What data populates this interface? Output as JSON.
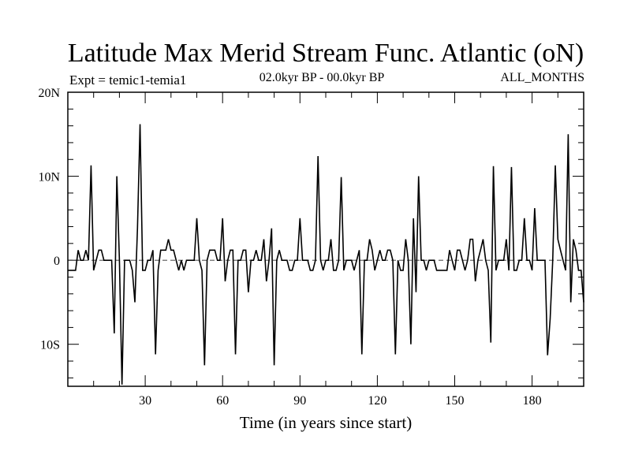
{
  "chart_data": {
    "type": "line",
    "title": "Latitude Max Merid Stream Func. Atlantic (oN)",
    "left_label": "Expt = temic1-temia1",
    "center_label": "02.0kyr BP - 00.0kyr BP",
    "right_label": "ALL_MONTHS",
    "xlabel": "Time (in years since start)",
    "ylabel": "",
    "xlim": [
      0,
      200
    ],
    "ylim": [
      -15,
      20
    ],
    "x_ticks": [
      {
        "value": 30,
        "label": "30"
      },
      {
        "value": 60,
        "label": "60"
      },
      {
        "value": 90,
        "label": "90"
      },
      {
        "value": 120,
        "label": "120"
      },
      {
        "value": 150,
        "label": "150"
      },
      {
        "value": 180,
        "label": "180"
      }
    ],
    "y_ticks": [
      {
        "value": 20,
        "label": "20N"
      },
      {
        "value": 10,
        "label": "10N"
      },
      {
        "value": 0,
        "label": "0"
      },
      {
        "value": -10,
        "label": "10S"
      }
    ],
    "zero_line": true,
    "grid": false,
    "series": [
      {
        "color": "#000000",
        "x": [
          0,
          3,
          4,
          5,
          6,
          7,
          8,
          9,
          10,
          11,
          12,
          13,
          14,
          15,
          16,
          17,
          18,
          19,
          20,
          21,
          22,
          23,
          24,
          25,
          26,
          27,
          28,
          29,
          30,
          31,
          32,
          33,
          34,
          35,
          36,
          37,
          38,
          39,
          40,
          41,
          42,
          43,
          44,
          45,
          46,
          47,
          48,
          49,
          50,
          51,
          52,
          53,
          54,
          55,
          56,
          57,
          58,
          59,
          60,
          61,
          62,
          63,
          64,
          65,
          66,
          67,
          68,
          69,
          70,
          71,
          72,
          73,
          74,
          75,
          76,
          77,
          78,
          79,
          80,
          81,
          82,
          83,
          84,
          85,
          86,
          87,
          88,
          89,
          90,
          91,
          92,
          93,
          94,
          95,
          96,
          97,
          98,
          99,
          100,
          101,
          102,
          103,
          104,
          105,
          106,
          107,
          108,
          109,
          110,
          111,
          112,
          113,
          114,
          115,
          116,
          117,
          118,
          119,
          120,
          121,
          122,
          123,
          124,
          125,
          126,
          127,
          128,
          129,
          130,
          131,
          132,
          133,
          134,
          135,
          136,
          137,
          138,
          139,
          140,
          141,
          142,
          143,
          144,
          145,
          146,
          147,
          148,
          149,
          150,
          151,
          152,
          153,
          154,
          155,
          156,
          157,
          158,
          159,
          160,
          161,
          162,
          163,
          164,
          165,
          166,
          167,
          168,
          169,
          170,
          171,
          172,
          173,
          174,
          175,
          176,
          177,
          178,
          179,
          180,
          181,
          182,
          183,
          184,
          185,
          186,
          187,
          188,
          189,
          190,
          191,
          192,
          193,
          194,
          195,
          196,
          197,
          198,
          199,
          200
        ],
        "y": [
          -1.2,
          -1.2,
          1.2,
          0,
          0,
          1.2,
          0,
          11.3,
          -1.2,
          0,
          1.2,
          1.2,
          0,
          0,
          0,
          0,
          -8.7,
          10,
          0,
          -14.8,
          0,
          0,
          0,
          -1.2,
          -5,
          3.8,
          16.2,
          -1.2,
          -1.2,
          0,
          0,
          1.2,
          -11.2,
          -1.2,
          1.2,
          1.2,
          1.2,
          2.5,
          1.2,
          1.2,
          0,
          -1.2,
          0,
          -1.2,
          0,
          0,
          0,
          0,
          5,
          0,
          -1.2,
          -12.5,
          0,
          1.2,
          1.2,
          1.2,
          0,
          0,
          5,
          -2.5,
          0,
          1.2,
          1.2,
          -11.2,
          0,
          0,
          1.2,
          1.2,
          -3.8,
          0,
          0,
          1.2,
          0,
          0,
          2.5,
          -2.5,
          0,
          3.8,
          -12.5,
          0,
          1.2,
          0,
          0,
          0,
          -1.2,
          -1.2,
          0,
          0,
          5,
          0,
          0,
          0,
          -1.2,
          -1.2,
          0,
          12.4,
          0,
          -1.2,
          0,
          0,
          2.5,
          -1.2,
          -1.2,
          0,
          9.9,
          -1.2,
          0,
          0,
          0,
          -1.2,
          0,
          1.2,
          -11.2,
          0,
          0,
          2.5,
          1.2,
          -1.2,
          0,
          1.2,
          0,
          0,
          1.2,
          1.2,
          0,
          -11.2,
          0,
          -1.2,
          -1.2,
          2.5,
          0,
          -10,
          5,
          -3.8,
          10,
          0,
          0,
          -1.2,
          0,
          0,
          0,
          -1.2,
          -1.2,
          -1.2,
          -1.2,
          -1.2,
          1.2,
          0,
          -1.2,
          1.2,
          1.2,
          0,
          -1.2,
          0,
          2.5,
          2.5,
          -2.5,
          0,
          1.2,
          2.5,
          0,
          -1.2,
          -9.8,
          11.2,
          -1.2,
          0,
          0,
          0,
          2.5,
          -1.2,
          11.1,
          -1.2,
          -1.2,
          0,
          0,
          5,
          0,
          0,
          -1.2,
          6.2,
          0,
          0,
          0,
          0,
          -11.3,
          -7,
          0,
          11.3,
          2.5,
          1.2,
          0,
          -1.2,
          15,
          -5,
          2.5,
          1.2,
          -1.2,
          -1.2,
          -5
        ]
      }
    ]
  }
}
